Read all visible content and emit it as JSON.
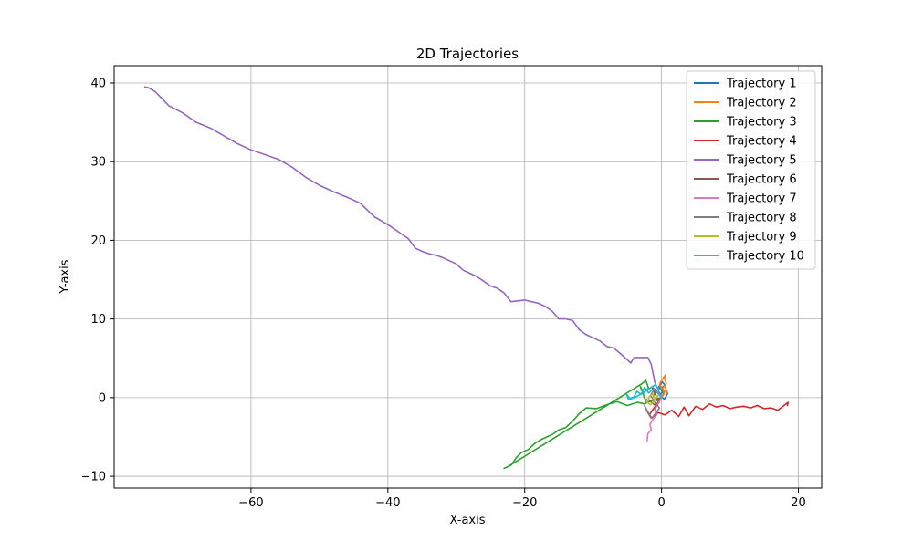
{
  "chart_data": {
    "type": "line",
    "title": "2D Trajectories",
    "xlabel": "X-axis",
    "ylabel": "Y-axis",
    "xlim": [
      -80,
      23.4
    ],
    "ylim": [
      -11.5,
      42.2
    ],
    "xticks": [
      -60,
      -40,
      -20,
      0,
      20
    ],
    "xtick_labels": [
      "−60",
      "−40",
      "−20",
      "0",
      "20"
    ],
    "yticks": [
      -10,
      0,
      10,
      20,
      30,
      40
    ],
    "ytick_labels": [
      "−10",
      "0",
      "10",
      "20",
      "30",
      "40"
    ],
    "grid": true,
    "legend_position": "top-right",
    "series": [
      {
        "name": "Trajectory 1",
        "color": "#1f77b4",
        "points": [
          [
            0,
            0
          ],
          [
            0.3,
            0.6
          ],
          [
            -0.2,
            1.1
          ],
          [
            0.5,
            1.6
          ],
          [
            0.1,
            2.0
          ],
          [
            -0.4,
            1.4
          ],
          [
            0.2,
            0.8
          ],
          [
            -0.3,
            0.3
          ],
          [
            0.4,
            -0.2
          ],
          [
            0.9,
            0.5
          ],
          [
            0.6,
            1.2
          ]
        ]
      },
      {
        "name": "Trajectory 2",
        "color": "#ff7f0e",
        "points": [
          [
            0,
            0
          ],
          [
            0.4,
            0.5
          ],
          [
            0.2,
            1.2
          ],
          [
            0.7,
            1.8
          ],
          [
            0.4,
            2.4
          ],
          [
            0.6,
            2.9
          ],
          [
            0.1,
            2.3
          ],
          [
            -0.3,
            1.7
          ],
          [
            0.1,
            1.0
          ],
          [
            0.8,
            0.6
          ],
          [
            0.5,
            1.5
          ]
        ]
      },
      {
        "name": "Trajectory 3",
        "color": "#2ca02c",
        "points": [
          [
            0,
            0
          ],
          [
            -1.5,
            -0.4
          ],
          [
            -2.5,
            -0.8
          ],
          [
            -3.5,
            -0.6
          ],
          [
            -5,
            -1.0
          ],
          [
            -6.5,
            -0.5
          ],
          [
            -8,
            -0.9
          ],
          [
            -9.5,
            -1.4
          ],
          [
            -11,
            -1.3
          ],
          [
            -12,
            -2
          ],
          [
            -13,
            -3
          ],
          [
            -14,
            -3.8
          ],
          [
            -15,
            -4.1
          ],
          [
            -16,
            -4.7
          ],
          [
            -17.5,
            -5.3
          ],
          [
            -18.5,
            -5.8
          ],
          [
            -19.5,
            -6.6
          ],
          [
            -20.5,
            -7
          ],
          [
            -21.2,
            -7.6
          ],
          [
            -22,
            -8.6
          ],
          [
            -23,
            -9
          ],
          [
            -22.5,
            -8.8
          ],
          [
            -2.8,
            1.8
          ],
          [
            -2.3,
            2.2
          ],
          [
            -1.9,
            1.2
          ],
          [
            -2.6,
            0.6
          ],
          [
            -3.1,
            1.4
          ],
          [
            -2.4,
            -0.2
          ]
        ]
      },
      {
        "name": "Trajectory 4",
        "color": "#d62728",
        "points": [
          [
            0,
            0
          ],
          [
            -1,
            -1.2
          ],
          [
            -1.8,
            -2.2
          ],
          [
            -2.2,
            -1.6
          ],
          [
            -1.5,
            -2.6
          ],
          [
            -0.5,
            -1.9
          ],
          [
            0.5,
            -2.2
          ],
          [
            1.5,
            -1.6
          ],
          [
            2.5,
            -2.4
          ],
          [
            3.3,
            -1.2
          ],
          [
            4,
            -2.3
          ],
          [
            5,
            -1.1
          ],
          [
            6,
            -1.5
          ],
          [
            7,
            -0.8
          ],
          [
            8,
            -1.2
          ],
          [
            9,
            -1
          ],
          [
            10,
            -1.4
          ],
          [
            11,
            -1.2
          ],
          [
            12,
            -1.1
          ],
          [
            13,
            -1.3
          ],
          [
            14,
            -1.0
          ],
          [
            15,
            -1.4
          ],
          [
            16,
            -1.3
          ],
          [
            17,
            -1.6
          ],
          [
            18.5,
            -0.6
          ],
          [
            18.4,
            -1.0
          ]
        ]
      },
      {
        "name": "Trajectory 5",
        "color": "#9467bd",
        "points": [
          [
            0,
            0
          ],
          [
            -1,
            2
          ],
          [
            -1.5,
            4.2
          ],
          [
            -2,
            5.1
          ],
          [
            -4,
            5.1
          ],
          [
            -4.5,
            4.4
          ],
          [
            -6,
            5.6
          ],
          [
            -7,
            6.3
          ],
          [
            -8,
            6.5
          ],
          [
            -9,
            7.2
          ],
          [
            -10,
            7.6
          ],
          [
            -11,
            8
          ],
          [
            -12,
            8.6
          ],
          [
            -13,
            9.8
          ],
          [
            -14,
            10
          ],
          [
            -15,
            10
          ],
          [
            -16,
            11
          ],
          [
            -17,
            11.6
          ],
          [
            -18,
            12
          ],
          [
            -19,
            12.2
          ],
          [
            -20,
            12.4
          ],
          [
            -21,
            12.3
          ],
          [
            -22,
            12.2
          ],
          [
            -23,
            13.3
          ],
          [
            -24,
            13.9
          ],
          [
            -25,
            14.2
          ],
          [
            -26,
            14.8
          ],
          [
            -27,
            15.4
          ],
          [
            -28,
            15.8
          ],
          [
            -29,
            16.2
          ],
          [
            -30,
            17
          ],
          [
            -31,
            17.4
          ],
          [
            -32,
            17.8
          ],
          [
            -33,
            18.1
          ],
          [
            -34,
            18.3
          ],
          [
            -35,
            18.6
          ],
          [
            -36,
            19
          ],
          [
            -37,
            20.2
          ],
          [
            -38,
            20.8
          ],
          [
            -39,
            21.4
          ],
          [
            -40,
            22
          ],
          [
            -42,
            23
          ],
          [
            -44,
            24.7
          ],
          [
            -46,
            25.5
          ],
          [
            -48,
            26.2
          ],
          [
            -50,
            27
          ],
          [
            -52,
            28
          ],
          [
            -54,
            29.3
          ],
          [
            -56,
            30.3
          ],
          [
            -58,
            30.9
          ],
          [
            -60,
            31.5
          ],
          [
            -62,
            32.3
          ],
          [
            -64,
            33.3
          ],
          [
            -66,
            34.3
          ],
          [
            -68,
            35
          ],
          [
            -70,
            36.2
          ],
          [
            -72,
            37.1
          ],
          [
            -73,
            38
          ],
          [
            -74,
            38.9
          ],
          [
            -75,
            39.4
          ],
          [
            -75.5,
            39.5
          ]
        ]
      },
      {
        "name": "Trajectory 6",
        "color": "#8c564b",
        "points": [
          [
            0,
            0
          ],
          [
            -0.6,
            -0.4
          ],
          [
            -1.2,
            0.2
          ],
          [
            -0.7,
            0.9
          ],
          [
            -1.4,
            1.3
          ],
          [
            -0.9,
            0.4
          ],
          [
            -0.3,
            -0.6
          ],
          [
            -1.1,
            -0.9
          ],
          [
            -1.8,
            -0.3
          ]
        ]
      },
      {
        "name": "Trajectory 7",
        "color": "#e377c2",
        "points": [
          [
            0,
            0
          ],
          [
            -0.5,
            -0.8
          ],
          [
            -1,
            -1.5
          ],
          [
            -0.7,
            -2.2
          ],
          [
            -1.3,
            -2.8
          ],
          [
            -1.7,
            -3.4
          ],
          [
            -1.5,
            -4.1
          ],
          [
            -2,
            -4.6
          ],
          [
            -2.1,
            -5.5
          ]
        ]
      },
      {
        "name": "Trajectory 8",
        "color": "#7f7f7f",
        "points": [
          [
            0,
            0
          ],
          [
            -0.5,
            0.5
          ],
          [
            -1.1,
            1
          ],
          [
            -1.6,
            0.3
          ],
          [
            -1,
            -0.6
          ],
          [
            -0.3,
            -1.3
          ],
          [
            -0.9,
            -2
          ],
          [
            -1.4,
            -2.6
          ],
          [
            -2,
            -1.8
          ],
          [
            -2.5,
            -1
          ],
          [
            -2.2,
            -0.2
          ]
        ]
      },
      {
        "name": "Trajectory 9",
        "color": "#bcbd22",
        "points": [
          [
            0,
            0
          ],
          [
            -0.4,
            0.4
          ],
          [
            -0.9,
            -0.2
          ],
          [
            -1.3,
            0.5
          ],
          [
            -1.8,
            0.1
          ],
          [
            -2.1,
            -0.6
          ],
          [
            -1.6,
            -0.9
          ],
          [
            -1,
            -0.4
          ]
        ]
      },
      {
        "name": "Trajectory 10",
        "color": "#17becf",
        "points": [
          [
            0,
            0
          ],
          [
            -0.6,
            0.7
          ],
          [
            -1.2,
            1.1
          ],
          [
            -1.9,
            0.6
          ],
          [
            -2.5,
            1.3
          ],
          [
            -3,
            0.4
          ],
          [
            -3.6,
            0.8
          ],
          [
            -4,
            0.1
          ],
          [
            -4.6,
            -0.1
          ],
          [
            -5.1,
            0.4
          ],
          [
            -4.8,
            -0.3
          ],
          [
            -3.5,
            0.2
          ],
          [
            -2.2,
            0.9
          ],
          [
            -1,
            1.6
          ],
          [
            -0.2,
            1.0
          ]
        ]
      }
    ]
  }
}
